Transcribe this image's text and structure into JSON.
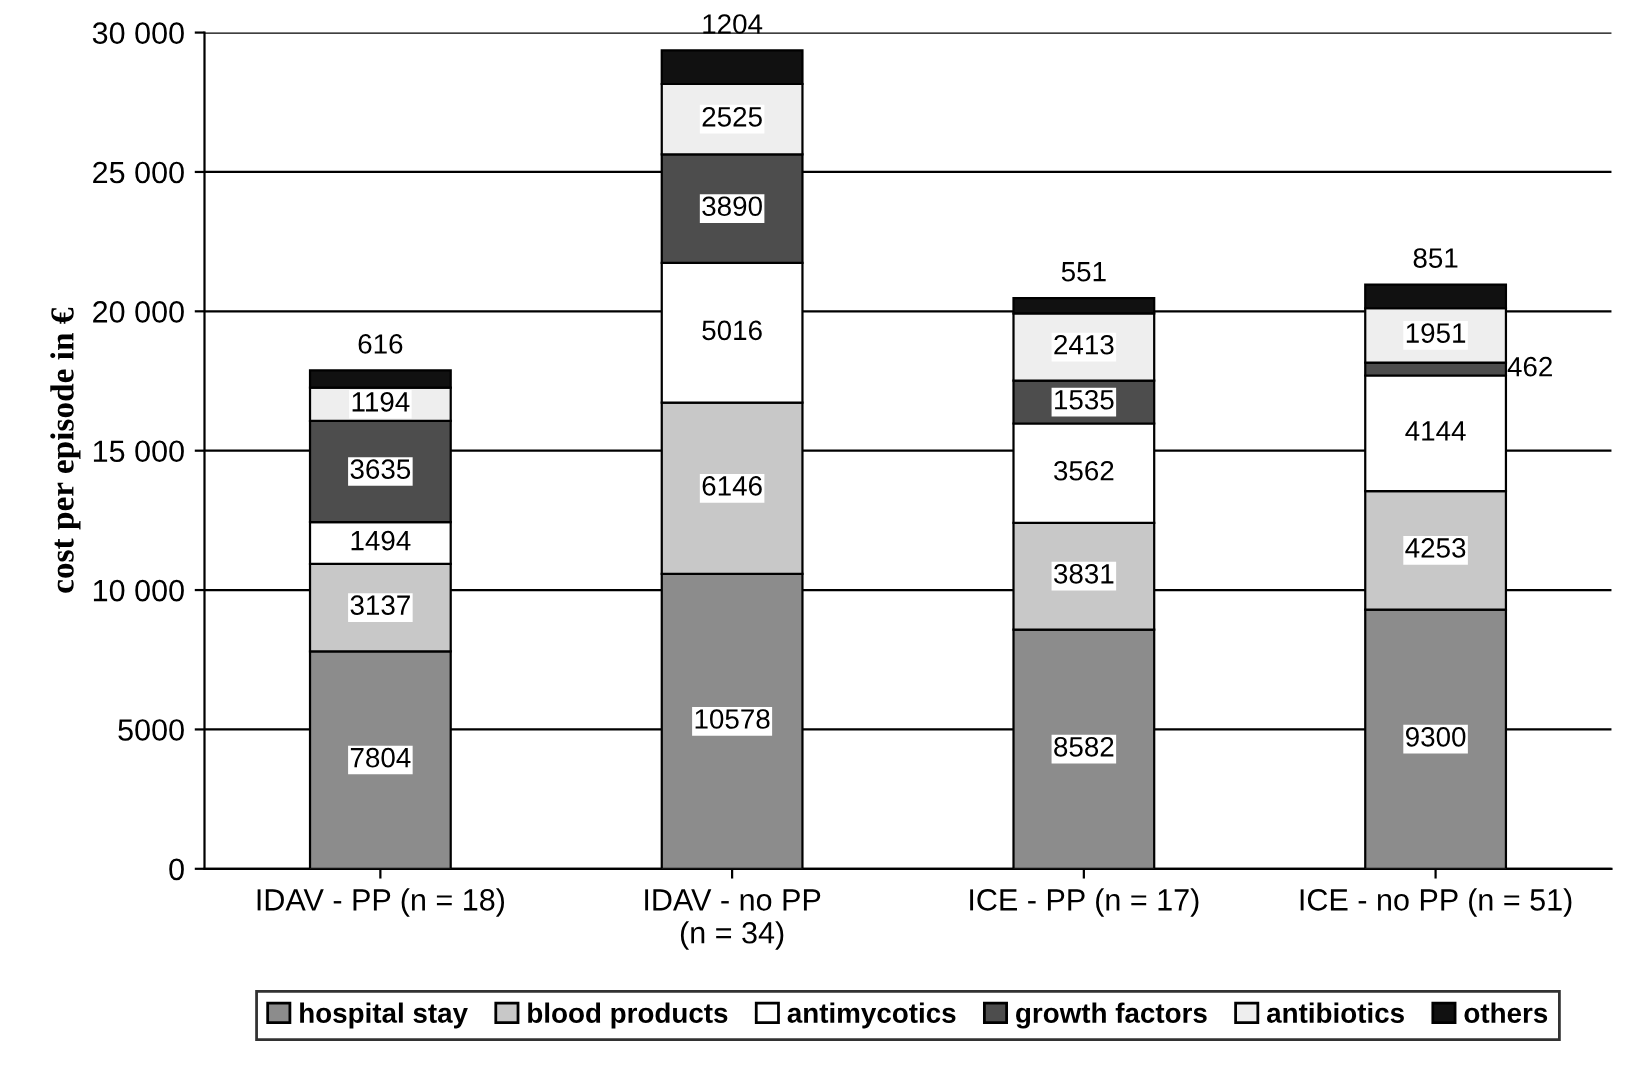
{
  "chart_data": {
    "type": "bar",
    "stacked": true,
    "ylabel": "cost per episode in €",
    "categories": [
      "IDAV - PP (n = 18)",
      "IDAV - no PP\n(n = 34)",
      "ICE - PP (n = 17)",
      "ICE - no PP (n = 51)"
    ],
    "series": [
      {
        "name": "hospital stay",
        "color": "#8c8c8c",
        "values": [
          7804,
          10578,
          8582,
          9300
        ]
      },
      {
        "name": "blood products",
        "color": "#c8c8c8",
        "values": [
          3137,
          6146,
          3831,
          4253
        ]
      },
      {
        "name": "antimycotics",
        "color": "#ffffff",
        "values": [
          1494,
          5016,
          3562,
          4144
        ]
      },
      {
        "name": "growth factors",
        "color": "#4d4d4d",
        "values": [
          3635,
          3890,
          1535,
          462
        ]
      },
      {
        "name": "antibiotics",
        "color": "#eeeeee",
        "values": [
          1194,
          2525,
          2413,
          1951
        ]
      },
      {
        "name": "others",
        "color": "#111111",
        "values": [
          616,
          1204,
          551,
          851
        ]
      }
    ],
    "ylim": [
      0,
      30000
    ],
    "yticks": [
      0,
      5000,
      {
        "value": 10000,
        "label": "10 000"
      },
      {
        "value": 15000,
        "label": "15 000"
      },
      {
        "value": 20000,
        "label": "20 000"
      },
      {
        "value": 25000,
        "label": "25 000"
      },
      {
        "value": 30000,
        "label": "30 000"
      }
    ],
    "grid": "y",
    "legend": "bottom",
    "data_labels": true
  }
}
